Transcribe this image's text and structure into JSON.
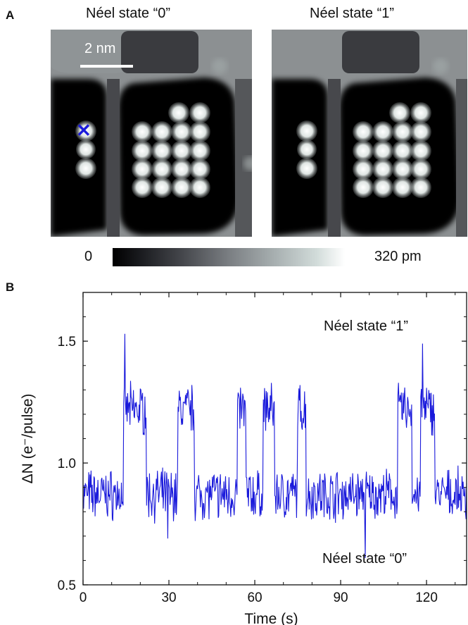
{
  "panel_a": {
    "letter": "A",
    "left_title": "Néel state “0”",
    "right_title": "Néel state “1”",
    "scale_bar_label": "2 nm",
    "marker_symbol": "✕",
    "colorbar": {
      "min_label": "0",
      "max_label": "320 pm"
    }
  },
  "panel_b": {
    "letter": "B"
  },
  "colors": {
    "trace": "#1a1adb",
    "marker": "#1a1adb"
  },
  "chart_data": {
    "type": "line",
    "xlabel": "Time (s)",
    "ylabel": "ΔN (e⁻/pulse)",
    "xlim": [
      0,
      134
    ],
    "ylim": [
      0.5,
      1.7
    ],
    "x_ticks": [
      0,
      30,
      60,
      90,
      120
    ],
    "y_ticks": [
      0.5,
      1.0,
      1.5
    ],
    "y_tick_labels": [
      "0.5",
      "1.0",
      "1.5"
    ],
    "annotations": [
      "Néel state “1”",
      "Néel state “0”"
    ],
    "levels": {
      "state_0": 0.87,
      "state_1": 1.22
    },
    "state_1_intervals": [
      [
        14,
        22
      ],
      [
        33,
        39
      ],
      [
        54,
        57
      ],
      [
        63,
        67
      ],
      [
        75,
        78
      ],
      [
        110,
        115
      ],
      [
        118,
        123
      ]
    ],
    "noise_amplitude": 0.08,
    "spike_extremes": [
      {
        "x": 14.5,
        "y": 1.53
      },
      {
        "x": 29.5,
        "y": 0.69
      },
      {
        "x": 98.7,
        "y": 0.61
      },
      {
        "x": 118.6,
        "y": 1.49
      }
    ]
  }
}
